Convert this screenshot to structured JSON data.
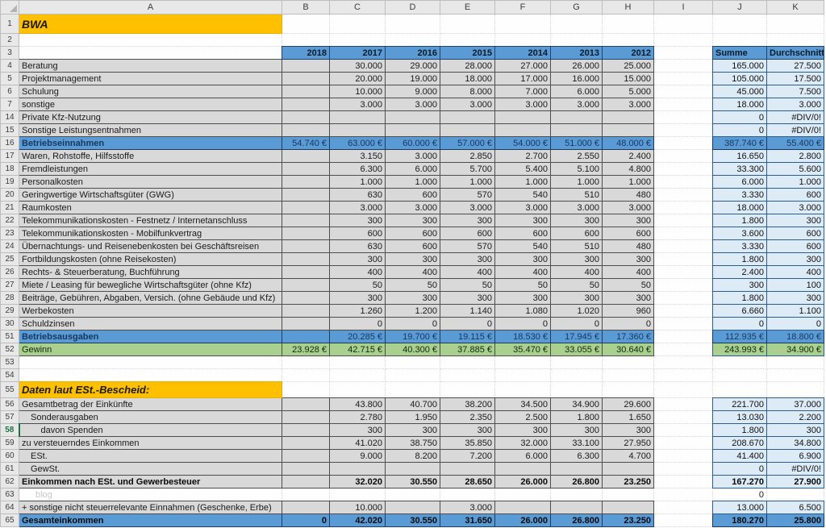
{
  "app": "spreadsheet",
  "title_banner": "BWA",
  "section_banner": "Daten laut ESt.-Bescheid:",
  "colors": {
    "banner_yellow": "#FFC000",
    "header_blue": "#5B9BD5",
    "summary_light_blue": "#DDEBF7",
    "profit_green": "#A9D08E",
    "cell_gray": "#D9D9D9"
  },
  "sheet": {
    "columns": [
      "A",
      "B",
      "C",
      "D",
      "E",
      "F",
      "G",
      "H",
      "I",
      "J",
      "K"
    ],
    "rows": [
      {
        "num": "1",
        "h": 24,
        "style": "banner",
        "label": "BWA"
      },
      {
        "num": "2",
        "style": "blank"
      },
      {
        "num": "3",
        "style": "years",
        "cells": [
          "2018",
          "2017",
          "2016",
          "2015",
          "2014",
          "2013",
          "2012"
        ],
        "j": "Summe",
        "k": "Durchschnitt"
      },
      {
        "num": "4",
        "style": "data",
        "label": "Beratung",
        "cells": [
          "",
          "30.000",
          "29.000",
          "28.000",
          "27.000",
          "26.000",
          "25.000"
        ],
        "j": "165.000",
        "k": "27.500"
      },
      {
        "num": "5",
        "style": "data",
        "label": "Projektmanagement",
        "cells": [
          "",
          "20.000",
          "19.000",
          "18.000",
          "17.000",
          "16.000",
          "15.000"
        ],
        "j": "105.000",
        "k": "17.500"
      },
      {
        "num": "6",
        "style": "data",
        "label": "Schulung",
        "cells": [
          "",
          "10.000",
          "9.000",
          "8.000",
          "7.000",
          "6.000",
          "5.000"
        ],
        "j": "45.000",
        "k": "7.500"
      },
      {
        "num": "7",
        "style": "data",
        "label": "sonstige",
        "cells": [
          "",
          "3.000",
          "3.000",
          "3.000",
          "3.000",
          "3.000",
          "3.000"
        ],
        "j": "18.000",
        "k": "3.000"
      },
      {
        "num": "14",
        "style": "data",
        "label": "Private Kfz-Nutzung",
        "cells": [
          "",
          "",
          "",
          "",
          "",
          "",
          ""
        ],
        "j": "0",
        "k": "#DIV/0!"
      },
      {
        "num": "15",
        "style": "data",
        "label": "Sonstige Leistungsentnahmen",
        "cells": [
          "",
          "",
          "",
          "",
          "",
          "",
          ""
        ],
        "j": "0",
        "k": "#DIV/0!"
      },
      {
        "num": "16",
        "style": "total",
        "label": "Betriebseinnahmen",
        "cells": [
          "54.740 €",
          "63.000 €",
          "60.000 €",
          "57.000 €",
          "54.000 €",
          "51.000 €",
          "48.000 €"
        ],
        "j": "387.740 €",
        "k": "55.400 €"
      },
      {
        "num": "17",
        "style": "data",
        "label": "Waren, Rohstoffe, Hilfsstoffe",
        "cells": [
          "",
          "3.150",
          "3.000",
          "2.850",
          "2.700",
          "2.550",
          "2.400"
        ],
        "j": "16.650",
        "k": "2.800"
      },
      {
        "num": "18",
        "style": "data",
        "label": "Fremdleistungen",
        "cells": [
          "",
          "6.300",
          "6.000",
          "5.700",
          "5.400",
          "5.100",
          "4.800"
        ],
        "j": "33.300",
        "k": "5.600"
      },
      {
        "num": "19",
        "style": "data",
        "label": "Personalkosten",
        "cells": [
          "",
          "1.000",
          "1.000",
          "1.000",
          "1.000",
          "1.000",
          "1.000"
        ],
        "j": "6.000",
        "k": "1.000"
      },
      {
        "num": "20",
        "style": "data",
        "label": "Geringwertige Wirtschaftsgüter (GWG)",
        "cells": [
          "",
          "630",
          "600",
          "570",
          "540",
          "510",
          "480"
        ],
        "j": "3.330",
        "k": "600"
      },
      {
        "num": "21",
        "style": "data",
        "label": "Raumkosten",
        "cells": [
          "",
          "3.000",
          "3.000",
          "3.000",
          "3.000",
          "3.000",
          "3.000"
        ],
        "j": "18.000",
        "k": "3.000"
      },
      {
        "num": "22",
        "style": "data",
        "label": "Telekommunikationskosten - Festnetz / Internetanschluss",
        "cells": [
          "",
          "300",
          "300",
          "300",
          "300",
          "300",
          "300"
        ],
        "j": "1.800",
        "k": "300"
      },
      {
        "num": "23",
        "style": "data",
        "label": "Telekommunikationskosten - Mobilfunkvertrag",
        "cells": [
          "",
          "600",
          "600",
          "600",
          "600",
          "600",
          "600"
        ],
        "j": "3.600",
        "k": "600"
      },
      {
        "num": "24",
        "style": "data",
        "label": "Übernachtungs- und Reisenebenkosten bei Geschäftsreisen",
        "cells": [
          "",
          "630",
          "600",
          "570",
          "540",
          "510",
          "480"
        ],
        "j": "3.330",
        "k": "600"
      },
      {
        "num": "25",
        "style": "data",
        "label": "Fortbildungskosten (ohne Reisekosten)",
        "cells": [
          "",
          "300",
          "300",
          "300",
          "300",
          "300",
          "300"
        ],
        "j": "1.800",
        "k": "300"
      },
      {
        "num": "26",
        "style": "data",
        "label": "Rechts- & Steuerberatung, Buchführung",
        "cells": [
          "",
          "400",
          "400",
          "400",
          "400",
          "400",
          "400"
        ],
        "j": "2.400",
        "k": "400"
      },
      {
        "num": "27",
        "style": "data",
        "label": "Miete / Leasing für bewegliche Wirtschaftsgüter (ohne Kfz)",
        "cells": [
          "",
          "50",
          "50",
          "50",
          "50",
          "50",
          "50"
        ],
        "j": "300",
        "k": "100"
      },
      {
        "num": "28",
        "style": "data",
        "label": "Beiträge, Gebühren, Abgaben, Versich. (ohne Gebäude und Kfz)",
        "cells": [
          "",
          "300",
          "300",
          "300",
          "300",
          "300",
          "300"
        ],
        "j": "1.800",
        "k": "300"
      },
      {
        "num": "29",
        "style": "data",
        "label": "Werbekosten",
        "cells": [
          "",
          "1.260",
          "1.200",
          "1.140",
          "1.080",
          "1.020",
          "960"
        ],
        "j": "6.660",
        "k": "1.100"
      },
      {
        "num": "30",
        "style": "data",
        "label": "Schuldzinsen",
        "cells": [
          "",
          "0",
          "0",
          "0",
          "0",
          "0",
          "0"
        ],
        "j": "0",
        "k": "0"
      },
      {
        "num": "51",
        "style": "total",
        "label": "Betriebsausgaben",
        "cells": [
          "",
          "20.285 €",
          "19.700 €",
          "19.115 €",
          "18.530 €",
          "17.945 €",
          "17.360 €"
        ],
        "j": "112.935 €",
        "k": "18.800 €"
      },
      {
        "num": "52",
        "style": "profit",
        "label": "Gewinn",
        "cells": [
          "23.928 €",
          "42.715 €",
          "40.300 €",
          "37.885 €",
          "35.470 €",
          "33.055 €",
          "30.640 €"
        ],
        "j": "243.993 €",
        "k": "34.900 €"
      },
      {
        "num": "53",
        "style": "blank"
      },
      {
        "num": "54",
        "style": "blank"
      },
      {
        "num": "55",
        "h": 20,
        "style": "banner",
        "small": true,
        "label": "Daten laut ESt.-Bescheid:"
      },
      {
        "num": "56",
        "style": "data",
        "label": "Gesamtbetrag der Einkünfte",
        "cells": [
          "",
          "43.800",
          "40.700",
          "38.200",
          "34.500",
          "34.900",
          "29.600"
        ],
        "j": "221.700",
        "k": "37.000"
      },
      {
        "num": "57",
        "style": "data",
        "indent": 1,
        "label": "Sonderausgaben",
        "cells": [
          "",
          "2.780",
          "1.950",
          "2.350",
          "2.500",
          "1.800",
          "1.650"
        ],
        "j": "13.030",
        "k": "2.200"
      },
      {
        "num": "58",
        "style": "data",
        "indent": 2,
        "numGreen": true,
        "label": "davon Spenden",
        "cells": [
          "",
          "300",
          "300",
          "300",
          "300",
          "300",
          "300"
        ],
        "j": "1.800",
        "k": "300"
      },
      {
        "num": "59",
        "style": "data",
        "label": "zu versteuerndes Einkommen",
        "cells": [
          "",
          "41.020",
          "38.750",
          "35.850",
          "32.000",
          "33.100",
          "27.950"
        ],
        "j": "208.670",
        "k": "34.800"
      },
      {
        "num": "60",
        "style": "data",
        "indent": 1,
        "label": "ESt.",
        "cells": [
          "",
          "9.000",
          "8.200",
          "7.200",
          "6.000",
          "6.300",
          "4.700"
        ],
        "j": "41.400",
        "k": "6.900"
      },
      {
        "num": "61",
        "style": "data",
        "indent": 1,
        "label": "GewSt.",
        "cells": [
          "",
          "",
          "",
          "",
          "",
          "",
          ""
        ],
        "j": "0",
        "k": "#DIV/0!"
      },
      {
        "num": "62",
        "style": "data",
        "bold": true,
        "label": "Einkommen nach ESt. und Gewerbesteuer",
        "cells": [
          "",
          "32.020",
          "30.550",
          "28.650",
          "26.000",
          "26.800",
          "23.250"
        ],
        "j": "167.270",
        "k": "27.900"
      },
      {
        "num": "63",
        "style": "watermark",
        "label": "blog",
        "j": "0"
      },
      {
        "num": "64",
        "style": "data",
        "label": "+ sonstige nicht steuerrelevante Einnahmen (Geschenke, Erbe)",
        "cells": [
          "",
          "10.000",
          "",
          "3.000",
          "",
          "",
          ""
        ],
        "j": "13.000",
        "k": "6.500"
      },
      {
        "num": "65",
        "style": "total",
        "black": true,
        "label": "Gesamteinkommen",
        "cells": [
          "0",
          "42.020",
          "30.550",
          "31.650",
          "26.000",
          "26.800",
          "23.250"
        ],
        "j": "180.270",
        "k": "25.800"
      }
    ]
  }
}
